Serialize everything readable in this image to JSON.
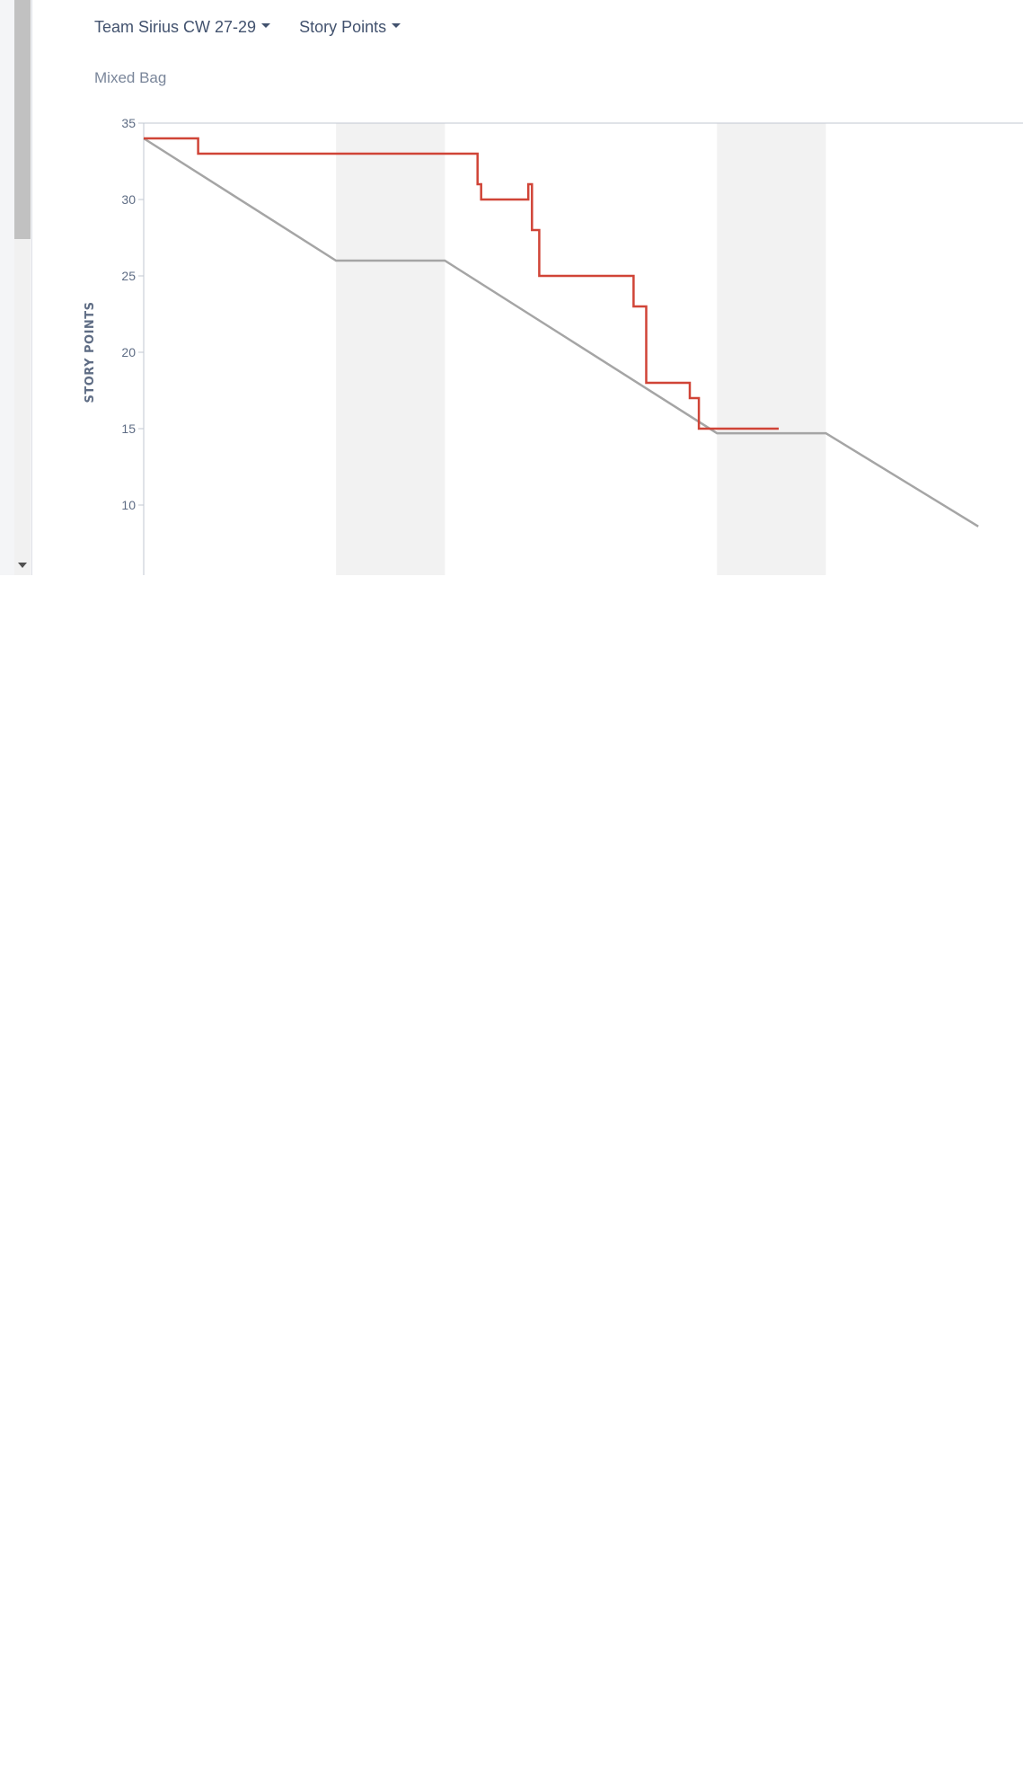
{
  "toolbar": {
    "board_dropdown_label": "Team Sirius CW 27-29",
    "estimate_dropdown_label": "Story Points"
  },
  "subtitle": "Mixed Bag",
  "colors": {
    "remaining": "#d04437",
    "guideline": "#a5a5a5",
    "nonworking": "#f2f2f2",
    "axis": "#c1c7d0"
  },
  "chart_data": {
    "type": "line",
    "ylabel": "STORY POINTS",
    "ylim": [
      5.5,
      35
    ],
    "yticks": [
      10,
      15,
      20,
      25,
      30,
      35
    ],
    "xlim": [
      0,
      23
    ],
    "nonworking_ranges": [
      [
        5.3,
        8.3
      ],
      [
        15.8,
        18.8
      ]
    ],
    "series": [
      {
        "role": "guideline",
        "points": [
          [
            0,
            34
          ],
          [
            5.3,
            26
          ],
          [
            8.3,
            26
          ],
          [
            15.8,
            14.7
          ],
          [
            18.8,
            14.7
          ],
          [
            23,
            8.6
          ]
        ]
      },
      {
        "role": "remaining",
        "points": [
          [
            0,
            34
          ],
          [
            1.5,
            34
          ],
          [
            1.5,
            33
          ],
          [
            9.2,
            33
          ],
          [
            9.2,
            31
          ],
          [
            9.3,
            31
          ],
          [
            9.3,
            30
          ],
          [
            10.6,
            30
          ],
          [
            10.6,
            31
          ],
          [
            10.7,
            31
          ],
          [
            10.7,
            28
          ],
          [
            10.9,
            28
          ],
          [
            10.9,
            25
          ],
          [
            13.5,
            25
          ],
          [
            13.5,
            23
          ],
          [
            13.85,
            23
          ],
          [
            13.85,
            18
          ],
          [
            15.05,
            18
          ],
          [
            15.05,
            17
          ],
          [
            15.3,
            17
          ],
          [
            15.3,
            15
          ],
          [
            17.5,
            15
          ]
        ]
      }
    ]
  }
}
